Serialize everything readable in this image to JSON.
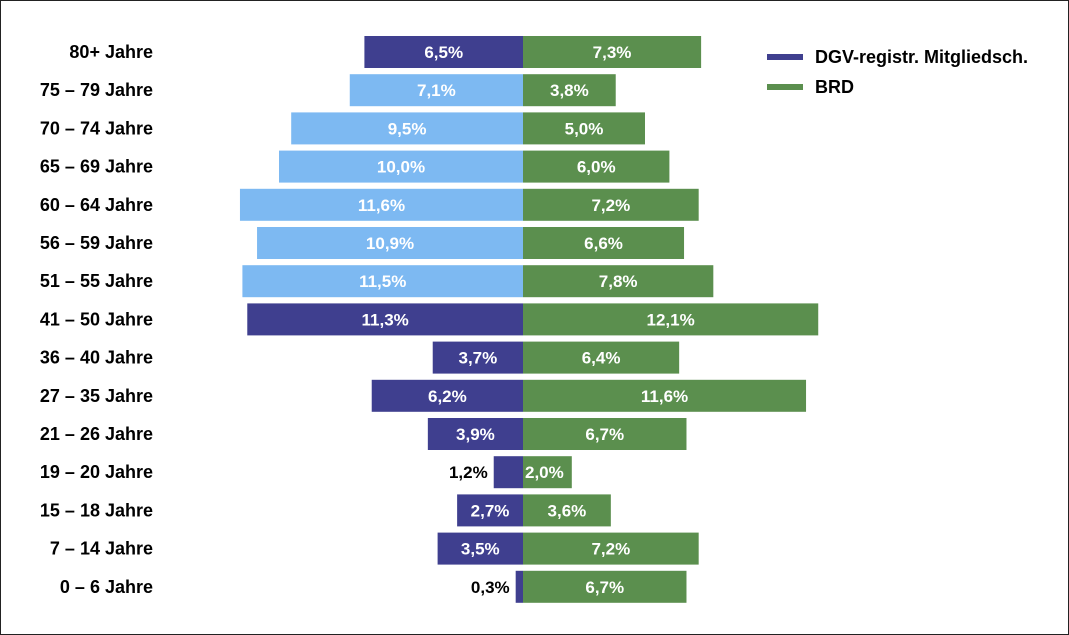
{
  "chart_data": {
    "type": "bar",
    "orientation": "horizontal",
    "layout": "population-pyramid",
    "categories": [
      "80+ Jahre",
      "75 – 79 Jahre",
      "70 – 74 Jahre",
      "65 – 69 Jahre",
      "60 – 64 Jahre",
      "56 – 59 Jahre",
      "51 – 55 Jahre",
      "41 – 50 Jahre",
      "36 – 40 Jahre",
      "27 – 35 Jahre",
      "21 – 26 Jahre",
      "19 – 20 Jahre",
      "15 – 18 Jahre",
      "7 – 14 Jahre",
      "0 – 6 Jahre"
    ],
    "series": [
      {
        "name": "DGV-registr. Mitgliedsch.",
        "side": "left",
        "color": "#3F3F8F",
        "highlight_color": "#7DB9F2",
        "highlighted_categories": [
          "75 – 79 Jahre",
          "70 – 74 Jahre",
          "65 – 69 Jahre",
          "60 – 64 Jahre",
          "56 – 59 Jahre",
          "51 – 55 Jahre"
        ],
        "values": [
          6.5,
          7.1,
          9.5,
          10.0,
          11.6,
          10.9,
          11.5,
          11.3,
          3.7,
          6.2,
          3.9,
          1.2,
          2.7,
          3.5,
          0.3
        ],
        "labels": [
          "6,5%",
          "7,1%",
          "9,5%",
          "10,0%",
          "11,6%",
          "10,9%",
          "11,5%",
          "11,3%",
          "3,7%",
          "6,2%",
          "3,9%",
          "1,2%",
          "2,7%",
          "3,5%",
          "0,3%"
        ]
      },
      {
        "name": "BRD",
        "side": "right",
        "color": "#5B8F4E",
        "values": [
          7.3,
          3.8,
          5.0,
          6.0,
          7.2,
          6.6,
          7.8,
          12.1,
          6.4,
          11.6,
          6.7,
          2.0,
          3.6,
          7.2,
          6.7
        ],
        "labels": [
          "7,3%",
          "3,8%",
          "5,0%",
          "6,0%",
          "7,2%",
          "6,6%",
          "7,8%",
          "12,1%",
          "6,4%",
          "11,6%",
          "6,7%",
          "2,0%",
          "3,6%",
          "7,2%",
          "6,7%"
        ]
      }
    ],
    "title": "",
    "xlabel": "",
    "ylabel": "",
    "grid": false,
    "legend_position": "top-right",
    "value_label_color": "#ffffff",
    "outside_label_color": "#000000"
  }
}
